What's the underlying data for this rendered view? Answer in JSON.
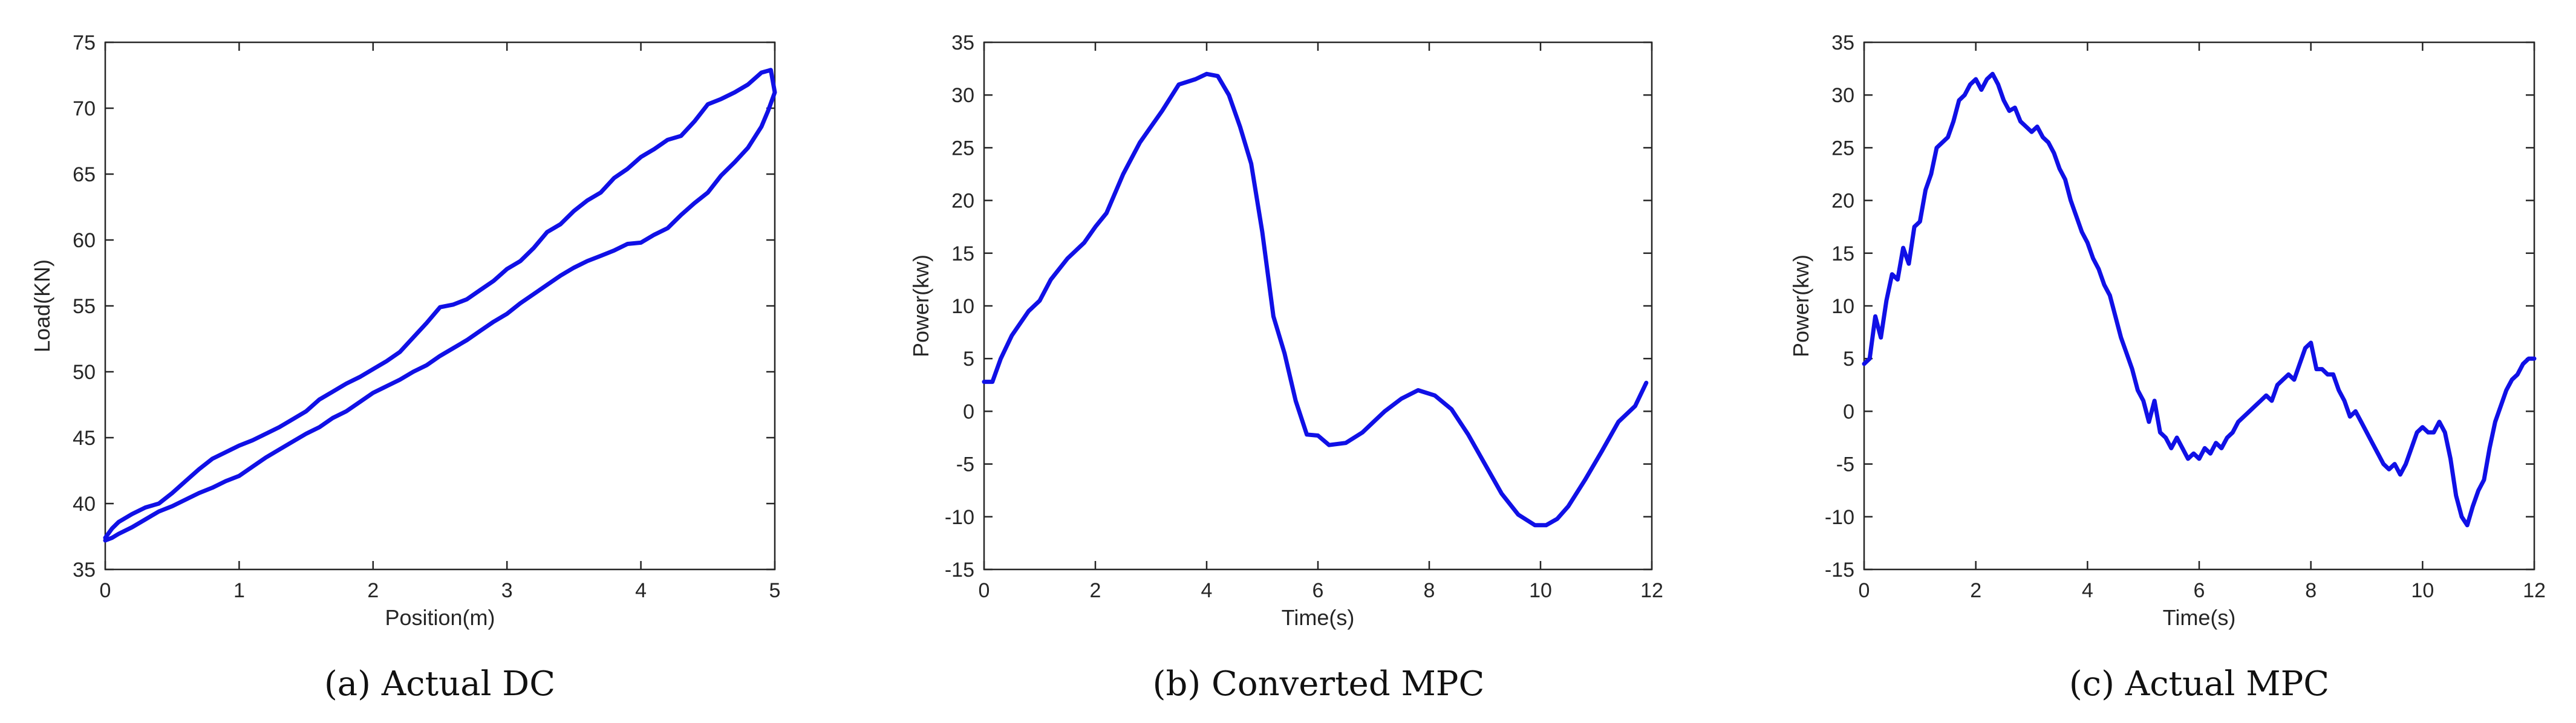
{
  "colors": {
    "line": "#1010e6",
    "axis": "#262626",
    "background": "#ffffff"
  },
  "chart_data": [
    {
      "type": "line",
      "caption": "(a)  Actual DC",
      "xlabel": "Position(m)",
      "ylabel": "Load(KN)",
      "xlim": [
        0,
        5
      ],
      "ylim": [
        35,
        75
      ],
      "xticks": [
        0,
        1,
        2,
        3,
        4,
        5
      ],
      "yticks": [
        35,
        40,
        45,
        50,
        55,
        60,
        65,
        70,
        75
      ],
      "grid": false,
      "series": [
        {
          "x": [
            0,
            0.05,
            0.1,
            0.2,
            0.3,
            0.4,
            0.5,
            0.6,
            0.7,
            0.8,
            0.9,
            1.0,
            1.1,
            1.2,
            1.3,
            1.4,
            1.5,
            1.6,
            1.7,
            1.8,
            1.9,
            2.0,
            2.1,
            2.2,
            2.3,
            2.4,
            2.5,
            2.6,
            2.7,
            2.8,
            2.9,
            3.0,
            3.1,
            3.2,
            3.3,
            3.4,
            3.5,
            3.6,
            3.7,
            3.8,
            3.9,
            4.0,
            4.1,
            4.2,
            4.3,
            4.4,
            4.5,
            4.6,
            4.7,
            4.8,
            4.9,
            4.95,
            5.0,
            4.97,
            4.9,
            4.8,
            4.7,
            4.6,
            4.5,
            4.4,
            4.3,
            4.2,
            4.1,
            4.0,
            3.9,
            3.8,
            3.7,
            3.6,
            3.5,
            3.4,
            3.3,
            3.2,
            3.1,
            3.0,
            2.9,
            2.8,
            2.7,
            2.6,
            2.5,
            2.4,
            2.3,
            2.2,
            2.1,
            2.0,
            1.9,
            1.8,
            1.7,
            1.6,
            1.5,
            1.4,
            1.3,
            1.2,
            1.1,
            1.0,
            0.9,
            0.8,
            0.7,
            0.6,
            0.5,
            0.4,
            0.3,
            0.2,
            0.1,
            0.05,
            0
          ],
          "y": [
            37.2,
            37.4,
            37.7,
            38.2,
            38.8,
            39.4,
            39.8,
            40.3,
            40.8,
            41.2,
            41.7,
            42.1,
            42.8,
            43.5,
            44.1,
            44.7,
            45.3,
            45.8,
            46.5,
            47.0,
            47.7,
            48.4,
            48.9,
            49.4,
            50.0,
            50.5,
            51.2,
            51.8,
            52.4,
            53.1,
            53.8,
            54.4,
            55.2,
            55.9,
            56.6,
            57.3,
            57.9,
            58.4,
            58.8,
            59.2,
            59.7,
            59.8,
            60.4,
            60.9,
            61.9,
            62.8,
            63.6,
            64.9,
            65.9,
            67.0,
            68.6,
            69.8,
            71.2,
            72.9,
            72.7,
            71.8,
            71.2,
            70.7,
            70.3,
            69.0,
            67.9,
            67.6,
            66.9,
            66.3,
            65.4,
            64.7,
            63.6,
            63.0,
            62.2,
            61.2,
            60.6,
            59.4,
            58.4,
            57.8,
            56.9,
            56.2,
            55.5,
            55.1,
            54.9,
            53.7,
            52.6,
            51.5,
            50.8,
            50.2,
            49.6,
            49.1,
            48.5,
            47.9,
            47.0,
            46.4,
            45.8,
            45.3,
            44.8,
            44.4,
            43.9,
            43.4,
            42.6,
            41.7,
            40.8,
            40.0,
            39.7,
            39.2,
            38.6,
            38.1,
            37.4
          ]
        }
      ]
    },
    {
      "type": "line",
      "caption": "(b)  Converted MPC",
      "xlabel": "Time(s)",
      "ylabel": "Power(kw)",
      "xlim": [
        0,
        12
      ],
      "ylim": [
        -15,
        35
      ],
      "xticks": [
        0,
        2,
        4,
        6,
        8,
        10,
        12
      ],
      "yticks": [
        -15,
        -10,
        -5,
        0,
        5,
        10,
        15,
        20,
        25,
        30,
        35
      ],
      "grid": false,
      "series": [
        {
          "x": [
            0,
            0.15,
            0.3,
            0.5,
            0.8,
            1.0,
            1.2,
            1.5,
            1.8,
            2.0,
            2.2,
            2.5,
            2.8,
            3.0,
            3.2,
            3.5,
            3.8,
            4.0,
            4.2,
            4.4,
            4.6,
            4.8,
            5.0,
            5.2,
            5.4,
            5.6,
            5.8,
            6.0,
            6.2,
            6.5,
            6.8,
            7.0,
            7.2,
            7.5,
            7.8,
            8.1,
            8.4,
            8.7,
            9.0,
            9.3,
            9.6,
            9.9,
            10.1,
            10.3,
            10.5,
            10.8,
            11.1,
            11.4,
            11.7,
            11.9
          ],
          "y": [
            2.8,
            2.8,
            5.0,
            7.2,
            9.5,
            10.5,
            12.5,
            14.5,
            16.0,
            17.5,
            18.8,
            22.5,
            25.5,
            27.0,
            28.5,
            31.0,
            31.5,
            32.0,
            31.8,
            30.0,
            27.0,
            23.5,
            17.0,
            9.0,
            5.5,
            1.0,
            -2.2,
            -2.3,
            -3.2,
            -3.0,
            -2.0,
            -1.0,
            0.0,
            1.2,
            2.0,
            1.5,
            0.2,
            -2.2,
            -5.0,
            -7.8,
            -9.8,
            -10.8,
            -10.8,
            -10.2,
            -9.0,
            -6.5,
            -3.8,
            -1.0,
            0.5,
            2.7
          ]
        }
      ]
    },
    {
      "type": "line",
      "caption": "(c)  Actual MPC",
      "xlabel": "Time(s)",
      "ylabel": "Power(kw)",
      "xlim": [
        0,
        12
      ],
      "ylim": [
        -15,
        35
      ],
      "xticks": [
        0,
        2,
        4,
        6,
        8,
        10,
        12
      ],
      "yticks": [
        -15,
        -10,
        -5,
        0,
        5,
        10,
        15,
        20,
        25,
        30,
        35
      ],
      "grid": false,
      "series": [
        {
          "x": [
            0,
            0.1,
            0.2,
            0.3,
            0.4,
            0.5,
            0.6,
            0.7,
            0.8,
            0.9,
            1.0,
            1.1,
            1.2,
            1.3,
            1.4,
            1.5,
            1.6,
            1.7,
            1.8,
            1.9,
            2.0,
            2.1,
            2.2,
            2.3,
            2.4,
            2.5,
            2.6,
            2.7,
            2.8,
            2.9,
            3.0,
            3.1,
            3.2,
            3.3,
            3.4,
            3.5,
            3.6,
            3.7,
            3.8,
            3.9,
            4.0,
            4.1,
            4.2,
            4.3,
            4.4,
            4.5,
            4.6,
            4.7,
            4.8,
            4.9,
            5.0,
            5.1,
            5.2,
            5.3,
            5.4,
            5.5,
            5.6,
            5.7,
            5.8,
            5.9,
            6.0,
            6.1,
            6.2,
            6.3,
            6.4,
            6.5,
            6.6,
            6.7,
            6.8,
            6.9,
            7.0,
            7.1,
            7.2,
            7.3,
            7.4,
            7.5,
            7.6,
            7.7,
            7.8,
            7.9,
            8.0,
            8.1,
            8.2,
            8.3,
            8.4,
            8.5,
            8.6,
            8.7,
            8.8,
            8.9,
            9.0,
            9.1,
            9.2,
            9.3,
            9.4,
            9.5,
            9.6,
            9.7,
            9.8,
            9.9,
            10.0,
            10.1,
            10.2,
            10.3,
            10.4,
            10.5,
            10.6,
            10.7,
            10.8,
            10.9,
            11.0,
            11.1,
            11.2,
            11.3,
            11.4,
            11.5,
            11.6,
            11.7,
            11.8,
            11.9,
            12.0
          ],
          "y": [
            4.5,
            5.0,
            9.0,
            7.0,
            10.5,
            13.0,
            12.5,
            15.5,
            14.0,
            17.5,
            18.0,
            21.0,
            22.5,
            25.0,
            25.5,
            26.0,
            27.5,
            29.5,
            30.0,
            31.0,
            31.5,
            30.5,
            31.5,
            32.0,
            31.0,
            29.5,
            28.5,
            28.8,
            27.5,
            27.0,
            26.5,
            27.0,
            26.0,
            25.5,
            24.5,
            23.0,
            22.0,
            20.0,
            18.5,
            17.0,
            16.0,
            14.5,
            13.5,
            12.0,
            11.0,
            9.0,
            7.0,
            5.5,
            4.0,
            2.0,
            1.0,
            -1.0,
            1.0,
            -2.0,
            -2.5,
            -3.5,
            -2.5,
            -3.5,
            -4.5,
            -4.0,
            -4.5,
            -3.5,
            -4.0,
            -3.0,
            -3.5,
            -2.5,
            -2.0,
            -1.0,
            -0.5,
            0.0,
            0.5,
            1.0,
            1.5,
            1.0,
            2.5,
            3.0,
            3.5,
            3.0,
            4.5,
            6.0,
            6.5,
            4.0,
            4.0,
            3.5,
            3.5,
            2.0,
            1.0,
            -0.5,
            0.0,
            -1.0,
            -2.0,
            -3.0,
            -4.0,
            -5.0,
            -5.5,
            -5.0,
            -6.0,
            -5.0,
            -3.5,
            -2.0,
            -1.5,
            -2.0,
            -2.0,
            -1.0,
            -2.0,
            -4.5,
            -8.0,
            -10.0,
            -10.8,
            -9.0,
            -7.5,
            -6.5,
            -3.5,
            -1.0,
            0.5,
            2.0,
            3.0,
            3.5,
            4.5,
            5.0,
            5.0
          ]
        }
      ]
    }
  ]
}
